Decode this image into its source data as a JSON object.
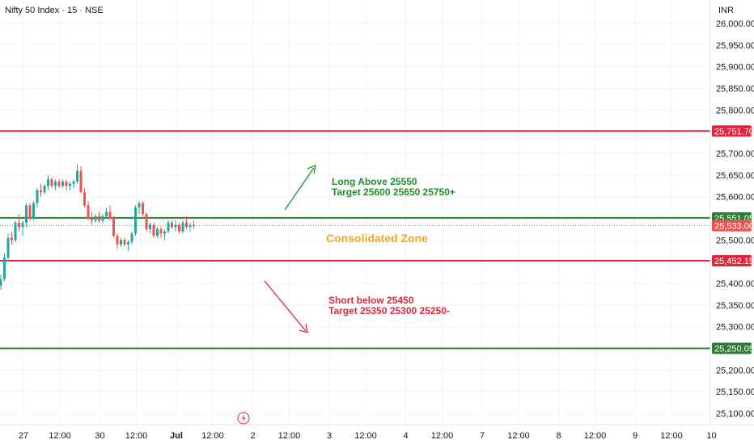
{
  "header": {
    "symbol": "Nifty 50 Index · 15 · NSE",
    "currency": "INR"
  },
  "colors": {
    "up": "#26a69a",
    "down": "#ef5350",
    "red_line": "#e0263a",
    "green_line": "#2e7d32",
    "annot_green": "#1b8f2a",
    "annot_red": "#e0263a",
    "annot_orange": "#f5a623",
    "grid": "#f0f3fa",
    "axis_border": "#e0e3eb"
  },
  "chart_data": {
    "type": "candlestick",
    "title": "Nifty 50 Index · 15 · NSE",
    "currency": "INR",
    "ylim": [
      25080,
      26020
    ],
    "y_ticks": [
      {
        "value": 26000,
        "label": "26,000.00"
      },
      {
        "value": 25950,
        "label": "25,950.00"
      },
      {
        "value": 25900,
        "label": "25,900.00"
      },
      {
        "value": 25850,
        "label": "25,850.00"
      },
      {
        "value": 25800,
        "label": "25,800.00"
      },
      {
        "value": 25700,
        "label": "25,700.00"
      },
      {
        "value": 25650,
        "label": "25,650.00"
      },
      {
        "value": 25600,
        "label": "25,600.00"
      },
      {
        "value": 25500,
        "label": "25,500.00"
      },
      {
        "value": 25400,
        "label": "25,400.00"
      },
      {
        "value": 25350,
        "label": "25,350.00"
      },
      {
        "value": 25300,
        "label": "25,300.00"
      },
      {
        "value": 25200,
        "label": "25,200.00"
      },
      {
        "value": 25150,
        "label": "25,150.00"
      },
      {
        "value": 25100,
        "label": "25,100.00"
      }
    ],
    "x_ticks": [
      {
        "label": "27",
        "slot": 6
      },
      {
        "label": "12:00",
        "slot": 16
      },
      {
        "label": "30",
        "slot": 27
      },
      {
        "label": "12:00",
        "slot": 37
      },
      {
        "label": "Jul",
        "slot": 48,
        "bold": true
      },
      {
        "label": "12:00",
        "slot": 58
      },
      {
        "label": "2",
        "slot": 69
      },
      {
        "label": "12:00",
        "slot": 79
      },
      {
        "label": "3",
        "slot": 90
      },
      {
        "label": "12:00",
        "slot": 100
      },
      {
        "label": "4",
        "slot": 111
      },
      {
        "label": "12:00",
        "slot": 121
      },
      {
        "label": "7",
        "slot": 132
      },
      {
        "label": "12:00",
        "slot": 142
      },
      {
        "label": "8",
        "slot": 153
      },
      {
        "label": "12:00",
        "slot": 163
      },
      {
        "label": "9",
        "slot": 174
      },
      {
        "label": "12:00",
        "slot": 184
      },
      {
        "label": "10",
        "slot": 195
      }
    ],
    "horizontal_levels": [
      {
        "value": 25751.7,
        "label": "25,751.70",
        "color": "#e0263a",
        "style": "solid"
      },
      {
        "value": 25551.05,
        "label": "25,551.05",
        "color": "#2e7d32",
        "style": "solid"
      },
      {
        "value": 25533.0,
        "label": "25,533.00",
        "color": "#ef5350",
        "style": "dotted"
      },
      {
        "value": 25452.15,
        "label": "25,452.15",
        "color": "#e0263a",
        "style": "solid"
      },
      {
        "value": 25250.05,
        "label": "25,250.05",
        "color": "#2e7d32",
        "style": "solid"
      }
    ],
    "candles": [
      [
        25395,
        25420,
        25385,
        25410
      ],
      [
        25410,
        25470,
        25405,
        25460
      ],
      [
        25460,
        25515,
        25450,
        25505
      ],
      [
        25505,
        25520,
        25490,
        25500
      ],
      [
        25500,
        25545,
        25495,
        25540
      ],
      [
        25540,
        25560,
        25520,
        25530
      ],
      [
        25530,
        25545,
        25510,
        25540
      ],
      [
        25540,
        25585,
        25530,
        25580
      ],
      [
        25580,
        25585,
        25545,
        25550
      ],
      [
        25550,
        25590,
        25545,
        25585
      ],
      [
        25585,
        25620,
        25575,
        25615
      ],
      [
        25615,
        25630,
        25600,
        25610
      ],
      [
        25610,
        25630,
        25605,
        25625
      ],
      [
        25625,
        25650,
        25615,
        25640
      ],
      [
        25640,
        25645,
        25620,
        25625
      ],
      [
        25625,
        25640,
        25615,
        25635
      ],
      [
        25635,
        25640,
        25620,
        25625
      ],
      [
        25625,
        25640,
        25620,
        25635
      ],
      [
        25635,
        25640,
        25615,
        25625
      ],
      [
        25625,
        25635,
        25615,
        25630
      ],
      [
        25630,
        25640,
        25620,
        25635
      ],
      [
        25635,
        25675,
        25630,
        25660
      ],
      [
        25660,
        25670,
        25610,
        25610
      ],
      [
        25610,
        25620,
        25575,
        25580
      ],
      [
        25580,
        25590,
        25545,
        25550
      ],
      [
        25550,
        25565,
        25535,
        25545
      ],
      [
        25545,
        25560,
        25540,
        25555
      ],
      [
        25555,
        25565,
        25540,
        25545
      ],
      [
        25545,
        25560,
        25540,
        25555
      ],
      [
        25555,
        25575,
        25550,
        25565
      ],
      [
        25565,
        25580,
        25545,
        25550
      ],
      [
        25550,
        25555,
        25505,
        25510
      ],
      [
        25510,
        25515,
        25480,
        25490
      ],
      [
        25490,
        25505,
        25485,
        25500
      ],
      [
        25500,
        25505,
        25485,
        25490
      ],
      [
        25490,
        25500,
        25475,
        25495
      ],
      [
        25495,
        25520,
        25490,
        25515
      ],
      [
        25515,
        25580,
        25510,
        25575
      ],
      [
        25575,
        25590,
        25560,
        25585
      ],
      [
        25585,
        25590,
        25555,
        25560
      ],
      [
        25560,
        25565,
        25520,
        25525
      ],
      [
        25525,
        25540,
        25515,
        25535
      ],
      [
        25535,
        25540,
        25505,
        25510
      ],
      [
        25510,
        25530,
        25505,
        25525
      ],
      [
        25525,
        25530,
        25505,
        25515
      ],
      [
        25515,
        25525,
        25500,
        25520
      ],
      [
        25520,
        25545,
        25515,
        25540
      ],
      [
        25540,
        25545,
        25525,
        25530
      ],
      [
        25530,
        25545,
        25520,
        25535
      ],
      [
        25535,
        25540,
        25515,
        25520
      ],
      [
        25520,
        25545,
        25515,
        25540
      ],
      [
        25540,
        25555,
        25525,
        25530
      ],
      [
        25530,
        25540,
        25520,
        25535
      ],
      [
        25535,
        25545,
        25525,
        25533
      ]
    ],
    "annotations": [
      {
        "text": "Long  Above 25550",
        "color": "green"
      },
      {
        "text": "Target 25600 25650 25750+",
        "color": "green"
      },
      {
        "text": "Consolidated Zone",
        "color": "orange"
      },
      {
        "text": "Short  below 25450",
        "color": "red"
      },
      {
        "text": "Target 25350 25300 25250-",
        "color": "red"
      }
    ]
  }
}
